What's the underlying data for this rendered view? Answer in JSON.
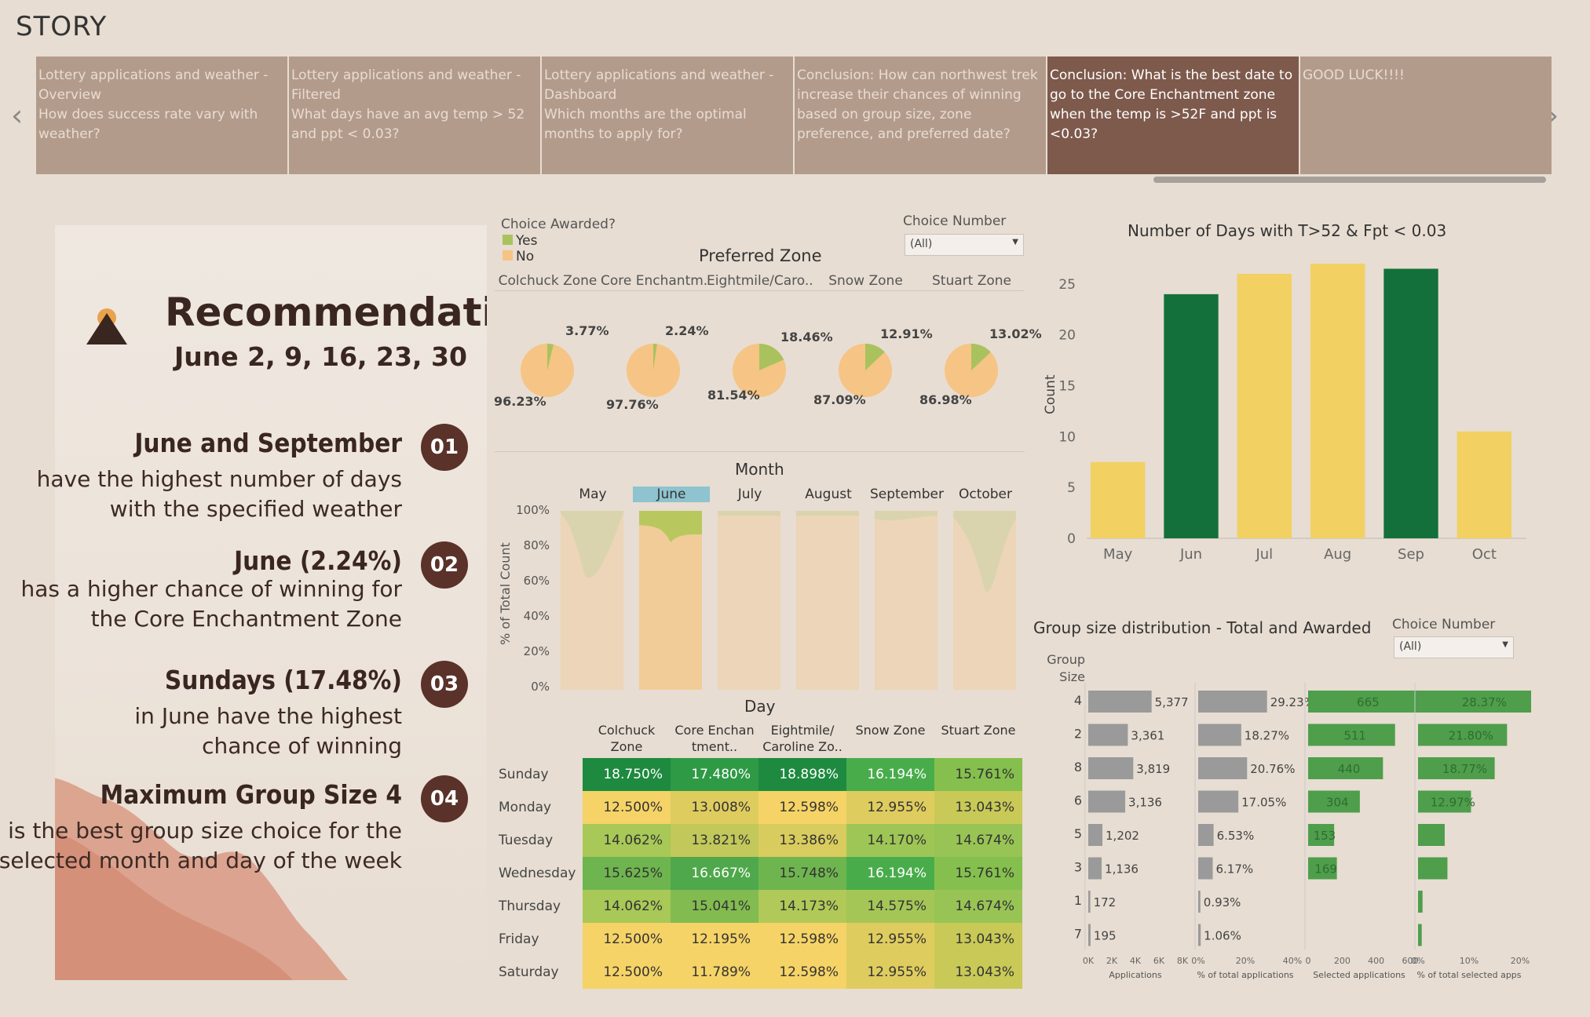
{
  "story": {
    "title": "STORY"
  },
  "nav": {
    "prev": "‹",
    "next": "›"
  },
  "tabs": [
    {
      "label": "Lottery applications and weather - Overview\nHow does success rate vary with weather?"
    },
    {
      "label": "Lottery applications and weather - Filtered\nWhat days have an avg temp > 52 and ppt < 0.03?"
    },
    {
      "label": "Lottery applications and weather - Dashboard\nWhich months are the optimal months to apply for?"
    },
    {
      "label": "Conclusion: How can northwest trek increase their chances of winning based on group size, zone preference, and preferred date?"
    },
    {
      "label": "Conclusion: What is the best date to go to the Core Enchantment zone when the temp is >52F and ppt is <0.03?"
    },
    {
      "label": "GOOD LUCK!!!!"
    }
  ],
  "recommendation": {
    "title": "Recommendation",
    "dates": "June 2, 9, 16, 23, 30",
    "items": [
      {
        "num": "01",
        "head": "June and September",
        "body1": "have the highest number of days",
        "body2": "with the specified weather"
      },
      {
        "num": "02",
        "head": "June (2.24%)",
        "body1": "has a higher chance of winning for",
        "body2": "the Core Enchantment Zone"
      },
      {
        "num": "03",
        "head": "Sundays (17.48%)",
        "body1": "in June have the highest",
        "body2": "chance of winning"
      },
      {
        "num": "04",
        "head": "Maximum Group Size 4",
        "body1": "is the best group size choice for the",
        "body2": "selected month and day of the week"
      }
    ]
  },
  "zone_panel": {
    "legend_title": "Choice Awarded?",
    "legend": [
      {
        "label": "Yes",
        "color": "#a9c25e"
      },
      {
        "label": "No",
        "color": "#f6c484"
      }
    ],
    "filter_label": "Choice Number",
    "filter_value": "(All)",
    "title": "Preferred Zone",
    "zones": [
      {
        "name": "Colchuck Zone",
        "yes": "3.77%",
        "no": "96.23%",
        "yes_frac": 0.0377
      },
      {
        "name": "Core Enchantm..",
        "yes": "2.24%",
        "no": "97.76%",
        "yes_frac": 0.0224
      },
      {
        "name": "Eightmile/Caro..",
        "yes": "18.46%",
        "no": "81.54%",
        "yes_frac": 0.1846
      },
      {
        "name": "Snow Zone",
        "yes": "12.91%",
        "no": "87.09%",
        "yes_frac": 0.1291
      },
      {
        "name": "Stuart Zone",
        "yes": "13.02%",
        "no": "86.98%",
        "yes_frac": 0.1302
      }
    ]
  },
  "month_panel": {
    "title": "Month",
    "months": [
      "May",
      "June",
      "July",
      "August",
      "September",
      "October"
    ],
    "selected": "June",
    "y_label": "% of Total Count",
    "y_ticks": [
      "100%",
      "80%",
      "60%",
      "40%",
      "20%",
      "0%"
    ]
  },
  "day_panel": {
    "title": "Day",
    "zones": [
      "Colchuck Zone",
      "Core Enchan tment..",
      "Eightmile/ Caroline Zo..",
      "Snow Zone",
      "Stuart Zone"
    ],
    "rows": [
      {
        "day": "Sunday",
        "values": [
          "18.750%",
          "17.480%",
          "18.898%",
          "16.194%",
          "15.761%"
        ],
        "colors": [
          "#1e8a3f",
          "#2f9a45",
          "#1e8a3f",
          "#49ac4b",
          "#85c04e"
        ]
      },
      {
        "day": "Monday",
        "values": [
          "12.500%",
          "13.008%",
          "12.598%",
          "12.955%",
          "13.043%"
        ],
        "colors": [
          "#f5d366",
          "#dfcc5f",
          "#f5d366",
          "#dfcc5f",
          "#c8c957"
        ]
      },
      {
        "day": "Tuesday",
        "values": [
          "14.062%",
          "13.821%",
          "13.386%",
          "14.170%",
          "14.674%"
        ],
        "colors": [
          "#a8c857",
          "#c2c85a",
          "#d9cc5e",
          "#9ec656",
          "#98c455"
        ]
      },
      {
        "day": "Wednesday",
        "values": [
          "15.625%",
          "16.667%",
          "15.748%",
          "16.194%",
          "15.761%"
        ],
        "colors": [
          "#6fb54f",
          "#4fa84b",
          "#6fb54f",
          "#49ac4b",
          "#85c04e"
        ]
      },
      {
        "day": "Thursday",
        "values": [
          "14.062%",
          "15.041%",
          "14.173%",
          "14.575%",
          "14.674%"
        ],
        "colors": [
          "#a8c857",
          "#82bb50",
          "#b0c958",
          "#a4c657",
          "#98c455"
        ]
      },
      {
        "day": "Friday",
        "values": [
          "12.500%",
          "12.195%",
          "12.598%",
          "12.955%",
          "13.043%"
        ],
        "colors": [
          "#f5d366",
          "#f5d366",
          "#f5d366",
          "#dfcc5f",
          "#c8c957"
        ]
      },
      {
        "day": "Saturday",
        "values": [
          "12.500%",
          "11.789%",
          "12.598%",
          "12.955%",
          "13.043%"
        ],
        "colors": [
          "#f5d366",
          "#f5d366",
          "#f5d366",
          "#dfcc5f",
          "#c8c957"
        ]
      }
    ]
  },
  "days_chart": {
    "chart_data": {
      "type": "bar",
      "title": "Number of Days with T>52 & Fpt < 0.03",
      "ylabel": "Count",
      "categories": [
        "May",
        "Jun",
        "Jul",
        "Aug",
        "Sep",
        "Oct"
      ],
      "values": [
        7.5,
        24,
        26,
        27,
        26.5,
        10.5
      ],
      "colors": [
        "#f2d062",
        "#13703a",
        "#f2d062",
        "#f2d062",
        "#13703a",
        "#f2d062"
      ],
      "ylim": [
        0,
        27
      ],
      "yticks": [
        0,
        5,
        10,
        15,
        20,
        25
      ]
    }
  },
  "group_chart": {
    "title": "Group size distribution - Total and Awarded",
    "filter_label": "Choice Number",
    "filter_value": "(All)",
    "row_header": "Group Size",
    "chart_data": {
      "type": "bar",
      "categories": [
        "4",
        "2",
        "8",
        "6",
        "5",
        "3",
        "1",
        "7"
      ],
      "series": [
        {
          "name": "Applications",
          "values": [
            5377,
            3361,
            3819,
            3136,
            1202,
            1136,
            172,
            195
          ],
          "labels": [
            "5,377",
            "3,361",
            "3,819",
            "3,136",
            "1,202",
            "1,136",
            "172",
            "195"
          ],
          "max": 8000,
          "ticks": [
            "0K",
            "2K",
            "4K",
            "6K",
            "8K"
          ],
          "color": "#9a9a9a"
        },
        {
          "name": "% of total applications",
          "values": [
            29.23,
            18.27,
            20.76,
            17.05,
            6.53,
            6.17,
            0.93,
            1.06
          ],
          "labels": [
            "29.23%",
            "18.27%",
            "20.76%",
            "17.05%",
            "6.53%",
            "6.17%",
            "0.93%",
            "1.06%"
          ],
          "max": 40,
          "ticks": [
            "0%",
            "20%",
            "40%"
          ],
          "color": "#9a9a9a"
        },
        {
          "name": "Selected applications",
          "values": [
            665,
            511,
            440,
            304,
            153,
            169,
            0,
            0
          ],
          "labels": [
            "665",
            "511",
            "440",
            "304",
            "153",
            "169",
            "",
            ""
          ],
          "max": 600,
          "ticks": [
            "0",
            "200",
            "400",
            "600"
          ],
          "color": "#4e9e4c"
        },
        {
          "name": "% of total selected apps",
          "values": [
            28.37,
            21.8,
            18.77,
            12.97,
            6.53,
            7.2,
            1.1,
            0.9
          ],
          "labels": [
            "28.37%",
            "21.80%",
            "18.77%",
            "12.97%",
            "",
            "",
            "",
            ""
          ],
          "max": 25,
          "ticks": [
            "0%",
            "10%",
            "20%"
          ],
          "color": "#4e9e4c"
        }
      ]
    }
  }
}
